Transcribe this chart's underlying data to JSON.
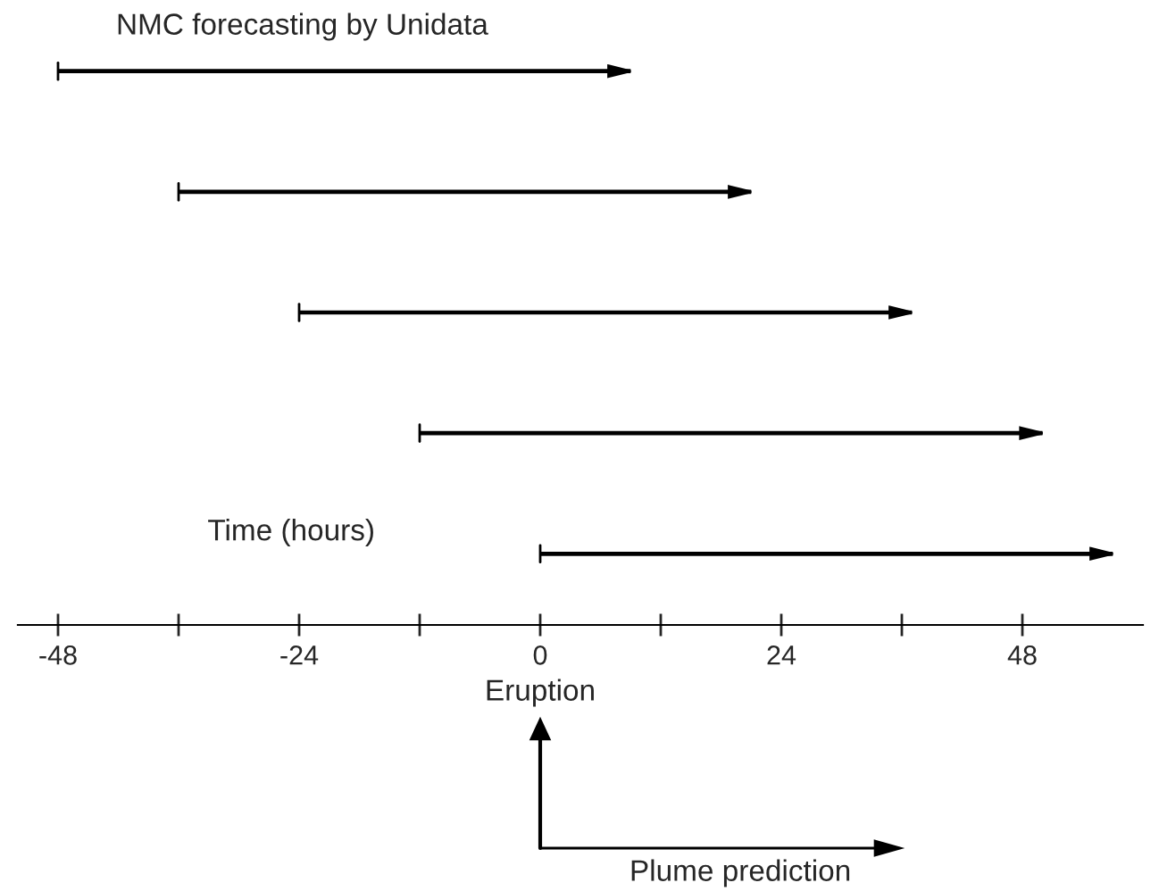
{
  "chart_data": {
    "type": "bar",
    "orientation": "horizontal",
    "relative": false,
    "title": "NMC forecasting by Unidata",
    "xlabel": "Time (hours)",
    "categories": [
      null,
      null,
      null,
      null,
      null
    ],
    "base": [
      -48,
      -36,
      -24,
      -12,
      0
    ],
    "values": [
      57,
      57,
      61,
      62,
      57
    ],
    "color": "#000000",
    "xlim": [
      -52,
      60
    ],
    "xticks": [
      -48,
      {
        "value": -36,
        "label": null
      },
      -24,
      {
        "value": -12,
        "label": null
      },
      0,
      {
        "value": 12,
        "label": null
      },
      24,
      {
        "value": 36,
        "label": null
      },
      48
    ],
    "annotations": [
      "Eruption",
      "Plume prediction"
    ]
  }
}
